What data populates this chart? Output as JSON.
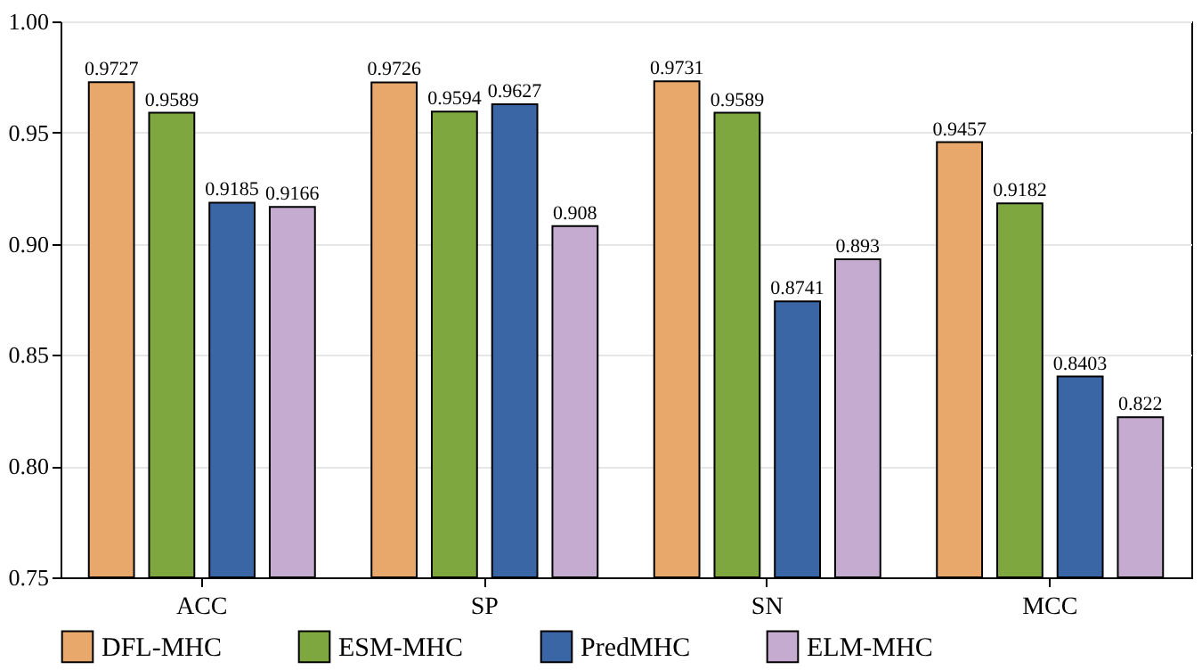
{
  "chart_data": {
    "type": "bar",
    "categories": [
      "ACC",
      "SP",
      "SN",
      "MCC"
    ],
    "series": [
      {
        "name": "DFL-MHC",
        "color": "#e8a86c",
        "values": [
          0.9727,
          0.9726,
          0.9731,
          0.9457
        ]
      },
      {
        "name": "ESM-MHC",
        "color": "#7ea83f",
        "values": [
          0.9589,
          0.9594,
          0.9589,
          0.9182
        ]
      },
      {
        "name": "PredMHC",
        "color": "#3a66a6",
        "values": [
          0.9185,
          0.9627,
          0.8741,
          0.8403
        ]
      },
      {
        "name": "ELM-MHC",
        "color": "#c6abd1",
        "values": [
          0.9166,
          0.908,
          0.893,
          0.822
        ]
      }
    ],
    "ylim": [
      0.75,
      1.0
    ],
    "yticks": [
      0.75,
      {
        "value": 0.8,
        "label": "0.80"
      },
      0.85,
      {
        "value": 0.9,
        "label": "0.90"
      },
      0.95,
      {
        "value": 1.0,
        "label": "1.00"
      }
    ],
    "grid": "y",
    "legend": "bottom",
    "data_labels": true
  }
}
